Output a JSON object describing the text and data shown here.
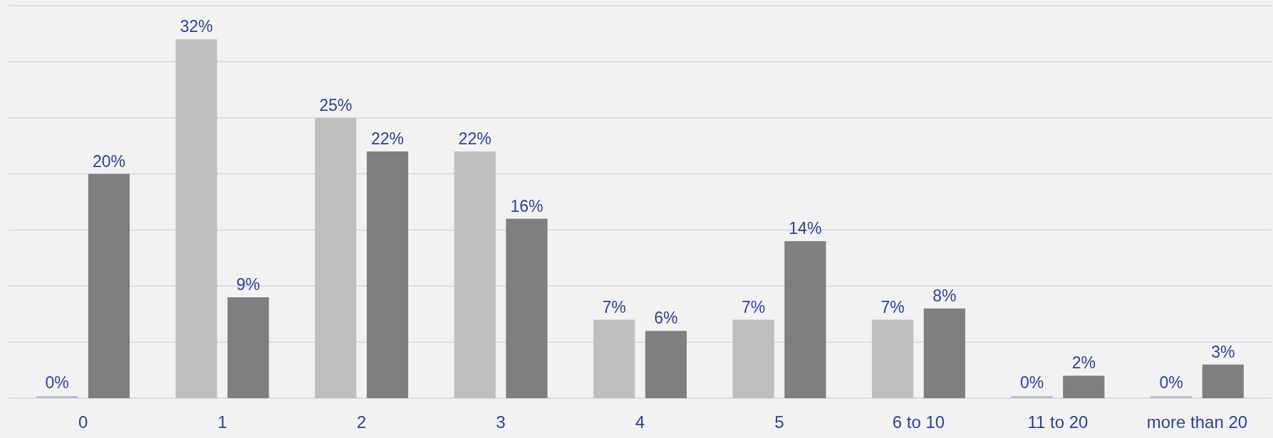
{
  "chart_data": {
    "type": "bar",
    "categories": [
      "0",
      "1",
      "2",
      "3",
      "4",
      "5",
      "6 to 10",
      "11 to 20",
      "more than 20"
    ],
    "series": [
      {
        "color": "#bfbfbf",
        "values": [
          0,
          32,
          25,
          22,
          7,
          7,
          7,
          0,
          0
        ],
        "value_labels": [
          "0%",
          "32%",
          "25%",
          "22%",
          "7%",
          "7%",
          "7%",
          "0%",
          "0%"
        ]
      },
      {
        "color": "#7f7f7f",
        "values": [
          20,
          9,
          22,
          16,
          6,
          14,
          8,
          2,
          3
        ],
        "value_labels": [
          "20%",
          "9%",
          "22%",
          "16%",
          "6%",
          "14%",
          "8%",
          "2%",
          "3%"
        ]
      }
    ],
    "ylim": [
      0,
      35
    ],
    "yticks": [
      {
        "value": 0,
        "label": null
      },
      {
        "value": 5,
        "label": null
      },
      {
        "value": 10,
        "label": null
      },
      {
        "value": 15,
        "label": null
      },
      {
        "value": 20,
        "label": null
      },
      {
        "value": 25,
        "label": null
      },
      {
        "value": 30,
        "label": null
      },
      {
        "value": 35,
        "label": null
      }
    ],
    "tick_labels": "x",
    "grid": "y"
  }
}
